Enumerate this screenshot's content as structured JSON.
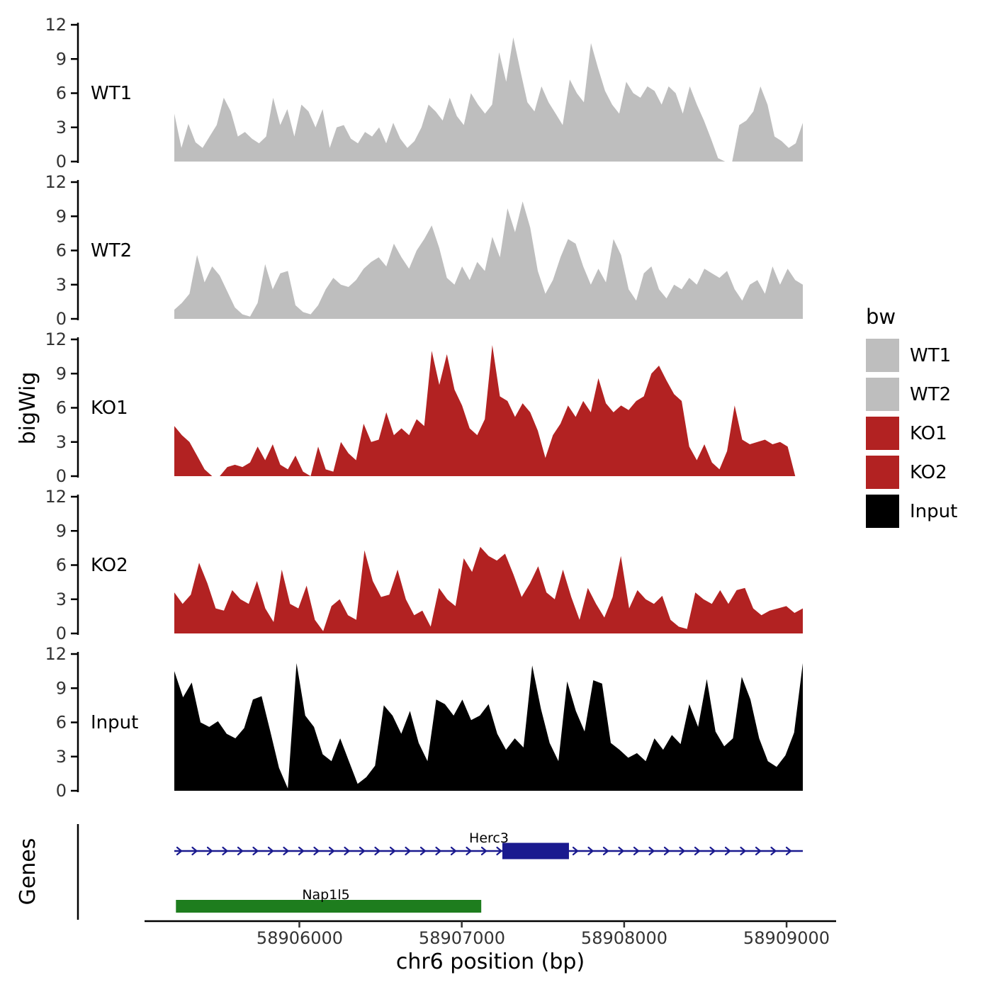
{
  "legend": {
    "title": "bw"
  },
  "chart_data": {
    "type": "area",
    "title": "",
    "x_axis": {
      "label": "chr6 position (bp)",
      "domain": [
        58905230,
        58909100
      ],
      "ticks": [
        58906000,
        58907000,
        58908000,
        58909000
      ]
    },
    "y_axis": {
      "label": "bigWig",
      "range": [
        0,
        12
      ],
      "ticks": [
        0,
        3,
        6,
        9,
        12
      ]
    },
    "tracks": [
      {
        "name": "WT1",
        "color": "#BEBEBE",
        "values": [
          4.2,
          1.2,
          3.3,
          1.7,
          1.2,
          2.2,
          3.2,
          5.6,
          4.4,
          2.2,
          2.6,
          2.0,
          1.6,
          2.2,
          5.6,
          3.2,
          4.6,
          2.2,
          5.0,
          4.4,
          3.0,
          4.6,
          1.2,
          3.0,
          3.2,
          2.0,
          1.6,
          2.6,
          2.2,
          3.0,
          1.6,
          3.4,
          2.0,
          1.2,
          1.8,
          3.0,
          5.0,
          4.4,
          3.6,
          5.6,
          4.0,
          3.2,
          6.0,
          5.0,
          4.2,
          5.0,
          9.6,
          7.0,
          10.9,
          8.0,
          5.2,
          4.4,
          6.6,
          5.2,
          4.2,
          3.2,
          7.2,
          6.0,
          5.2,
          10.4,
          8.2,
          6.2,
          5.0,
          4.2,
          7.0,
          6.0,
          5.6,
          6.6,
          6.2,
          5.0,
          6.6,
          6.0,
          4.2,
          6.6,
          5.0,
          3.6,
          2.0,
          0.3,
          0,
          0,
          3.2,
          3.6,
          4.4,
          6.6,
          5.0,
          2.2,
          1.8,
          1.2,
          1.6,
          3.4
        ]
      },
      {
        "name": "WT2",
        "color": "#BEBEBE",
        "values": [
          0.8,
          1.4,
          2.2,
          5.6,
          3.2,
          4.6,
          3.8,
          2.4,
          1.0,
          0.4,
          0.2,
          1.4,
          4.8,
          2.6,
          4.0,
          4.2,
          1.2,
          0.6,
          0.4,
          1.2,
          2.6,
          3.6,
          3.0,
          2.8,
          3.4,
          4.4,
          5.0,
          5.4,
          4.6,
          6.6,
          5.4,
          4.4,
          6.0,
          7.0,
          8.2,
          6.2,
          3.6,
          3.0,
          4.6,
          3.4,
          5.0,
          4.2,
          7.2,
          5.4,
          9.7,
          7.6,
          10.3,
          8.0,
          4.2,
          2.2,
          3.4,
          5.4,
          7.0,
          6.6,
          4.6,
          3.0,
          4.4,
          3.2,
          7.0,
          5.6,
          2.6,
          1.6,
          4.0,
          4.6,
          2.6,
          1.8,
          3.0,
          2.6,
          3.6,
          3.0,
          4.4,
          4.0,
          3.6,
          4.2,
          2.6,
          1.6,
          3.0,
          3.4,
          2.2,
          4.6,
          3.0,
          4.4,
          3.4,
          3.0
        ]
      },
      {
        "name": "KO1",
        "color": "#B22222",
        "values": [
          4.4,
          3.6,
          3.0,
          1.8,
          0.6,
          0,
          0,
          0.8,
          1.0,
          0.8,
          1.2,
          2.6,
          1.4,
          2.8,
          1.0,
          0.6,
          1.8,
          0.4,
          0,
          2.6,
          0.6,
          0.4,
          3.0,
          2.0,
          1.4,
          4.6,
          3.0,
          3.2,
          5.6,
          3.6,
          4.2,
          3.6,
          5.0,
          4.4,
          11.0,
          8.0,
          10.7,
          7.6,
          6.2,
          4.2,
          3.6,
          5.0,
          11.5,
          7.0,
          6.6,
          5.2,
          6.4,
          5.6,
          4.0,
          1.6,
          3.6,
          4.6,
          6.2,
          5.2,
          6.6,
          5.6,
          8.6,
          6.4,
          5.6,
          6.2,
          5.8,
          6.6,
          7.0,
          9.0,
          9.7,
          8.4,
          7.2,
          6.6,
          2.6,
          1.4,
          2.8,
          1.2,
          0.6,
          2.2,
          6.2,
          3.2,
          2.8,
          3.0,
          3.2,
          2.8,
          3.0,
          2.6,
          0,
          0
        ]
      },
      {
        "name": "KO2",
        "color": "#B22222",
        "values": [
          3.6,
          2.6,
          3.4,
          6.2,
          4.4,
          2.2,
          2.0,
          3.8,
          3.0,
          2.6,
          4.6,
          2.2,
          1.0,
          5.6,
          2.6,
          2.2,
          4.2,
          1.2,
          0.2,
          2.4,
          3.0,
          1.6,
          1.2,
          7.3,
          4.6,
          3.2,
          3.4,
          5.6,
          3.0,
          1.6,
          2.0,
          0.6,
          4.0,
          3.0,
          2.4,
          6.6,
          5.4,
          7.6,
          6.8,
          6.4,
          7.0,
          5.2,
          3.2,
          4.4,
          5.9,
          3.6,
          3.0,
          5.6,
          3.2,
          1.2,
          4.0,
          2.6,
          1.4,
          3.2,
          6.8,
          2.2,
          3.8,
          3.0,
          2.6,
          3.3,
          1.2,
          0.6,
          0.4,
          3.6,
          3.0,
          2.6,
          3.8,
          2.6,
          3.8,
          4.0,
          2.2,
          1.6,
          2.0,
          2.2,
          2.4,
          1.8,
          2.2
        ]
      },
      {
        "name": "Input",
        "color": "#000000",
        "values": [
          10.5,
          8.2,
          9.5,
          6.0,
          5.6,
          6.1,
          5.0,
          4.6,
          5.5,
          8.0,
          8.3,
          5.2,
          2.0,
          0.2,
          11.2,
          6.6,
          5.6,
          3.2,
          2.6,
          4.6,
          2.6,
          0.6,
          1.2,
          2.2,
          7.5,
          6.6,
          5.0,
          7.0,
          4.2,
          2.6,
          8.0,
          7.6,
          6.6,
          8.0,
          6.2,
          6.6,
          7.6,
          5.0,
          3.6,
          4.6,
          3.8,
          11.0,
          7.2,
          4.2,
          2.6,
          9.6,
          7.0,
          5.2,
          9.7,
          9.4,
          4.2,
          3.6,
          2.9,
          3.3,
          2.6,
          4.6,
          3.6,
          4.9,
          4.1,
          7.6,
          5.6,
          9.8,
          5.2,
          3.9,
          4.6,
          10.0,
          8.0,
          4.6,
          2.6,
          2.1,
          3.1,
          5.1,
          11.2
        ]
      }
    ],
    "genes": {
      "panel_label": "Genes",
      "items": [
        {
          "name": "Herc3",
          "color": "#1A1A8F",
          "strand": "+",
          "line": [
            58905230,
            58909100
          ],
          "exon": [
            58907250,
            58907660
          ]
        },
        {
          "name": "Nap1l5",
          "color": "#1E7D1E",
          "strand": "+",
          "box": [
            58905240,
            58907120
          ]
        }
      ]
    }
  }
}
